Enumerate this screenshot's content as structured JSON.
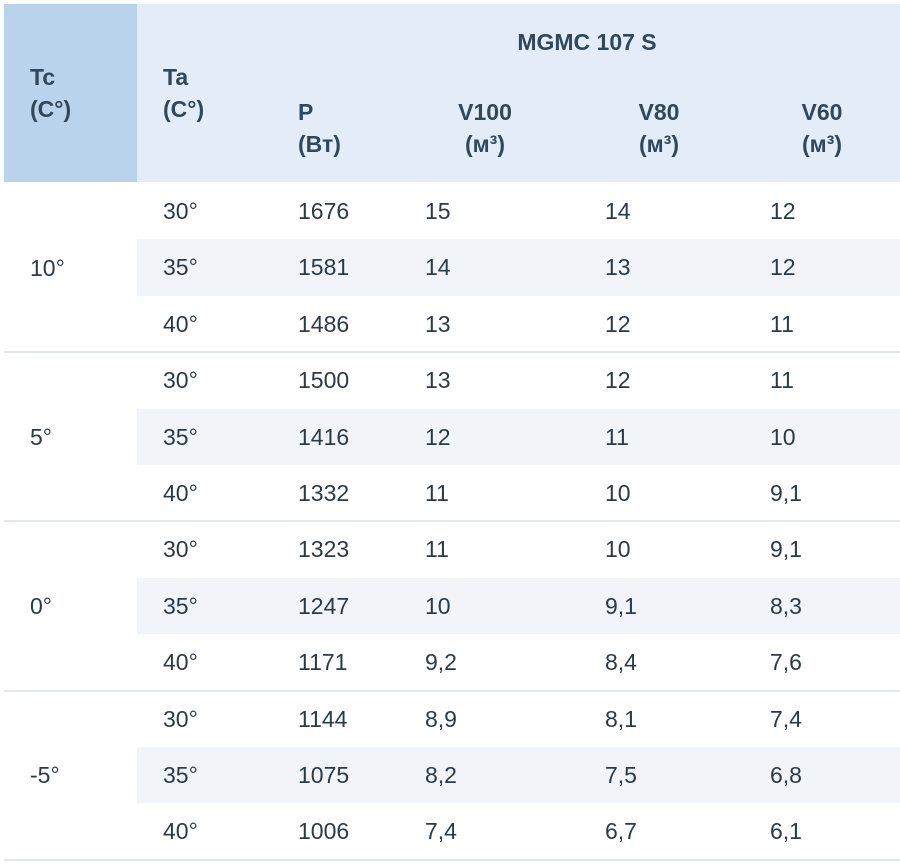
{
  "header": {
    "tc": [
      "Tc",
      "(C°)"
    ],
    "ta": [
      "Ta",
      "(C°)"
    ],
    "model": "MGMC 107 S",
    "columns": [
      [
        "P",
        "(Вт)"
      ],
      [
        "V100",
        "(м³)"
      ],
      [
        "V80",
        "(м³)"
      ],
      [
        "V60",
        "(м³)"
      ]
    ]
  },
  "groups": [
    {
      "tc": "10°",
      "rows": [
        [
          "30°",
          "1676",
          "15",
          "14",
          "12"
        ],
        [
          "35°",
          "1581",
          "14",
          "13",
          "12"
        ],
        [
          "40°",
          "1486",
          "13",
          "12",
          "11"
        ]
      ]
    },
    {
      "tc": "5°",
      "rows": [
        [
          "30°",
          "1500",
          "13",
          "12",
          "11"
        ],
        [
          "35°",
          "1416",
          "12",
          "11",
          "10"
        ],
        [
          "40°",
          "1332",
          "11",
          "10",
          "9,1"
        ]
      ]
    },
    {
      "tc": "0°",
      "rows": [
        [
          "30°",
          "1323",
          "11",
          "10",
          "9,1"
        ],
        [
          "35°",
          "1247",
          "10",
          "9,1",
          "8,3"
        ],
        [
          "40°",
          "1171",
          "9,2",
          "8,4",
          "7,6"
        ]
      ]
    },
    {
      "tc": "-5°",
      "rows": [
        [
          "30°",
          "1144",
          "8,9",
          "8,1",
          "7,4"
        ],
        [
          "35°",
          "1075",
          "8,2",
          "7,5",
          "6,8"
        ],
        [
          "40°",
          "1006",
          "7,4",
          "6,7",
          "6,1"
        ]
      ]
    }
  ]
}
